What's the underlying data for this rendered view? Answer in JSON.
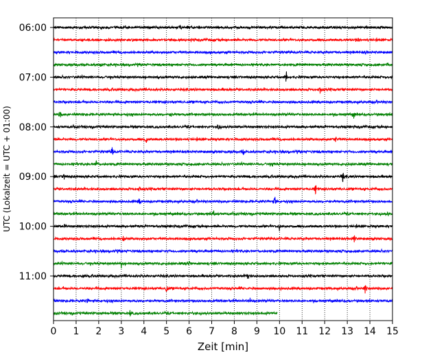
{
  "chart_data": {
    "type": "line",
    "xlabel": "Zeit  [min]",
    "ylabel": "UTC (Lokalzeit = UTC + 01:00)",
    "xlim": [
      0,
      15
    ],
    "x_ticks": [
      "0",
      "1",
      "2",
      "3",
      "4",
      "5",
      "6",
      "7",
      "8",
      "9",
      "10",
      "11",
      "12",
      "13",
      "14",
      "15"
    ],
    "y_tick_labels": [
      "06:00",
      "07:00",
      "08:00",
      "09:00",
      "10:00",
      "11:00"
    ],
    "grid": "vertical dotted",
    "trace_interval_min": 15,
    "trace_colors": [
      "#000000",
      "#ff0000",
      "#0000ff",
      "#008000"
    ],
    "traces": [
      {
        "start": "06:00",
        "color": "#000000",
        "end_min": 15,
        "events": [
          {
            "t": 5.6,
            "amp": 0.3
          }
        ]
      },
      {
        "start": "06:15",
        "color": "#ff0000",
        "end_min": 15,
        "events": [
          {
            "t": 13.5,
            "amp": 0.3
          }
        ]
      },
      {
        "start": "06:30",
        "color": "#0000ff",
        "end_min": 15,
        "events": [
          {
            "t": 13.8,
            "amp": 0.3
          }
        ]
      },
      {
        "start": "06:45",
        "color": "#008000",
        "end_min": 15,
        "events": [
          {
            "t": 2.1,
            "amp": 0.5
          },
          {
            "t": 14.8,
            "amp": 0.4
          }
        ]
      },
      {
        "start": "07:00",
        "color": "#000000",
        "end_min": 15,
        "events": [
          {
            "t": 10.3,
            "amp": 1.0
          }
        ]
      },
      {
        "start": "07:15",
        "color": "#ff0000",
        "end_min": 15,
        "events": [
          {
            "t": 11.8,
            "amp": 0.6
          }
        ]
      },
      {
        "start": "07:30",
        "color": "#0000ff",
        "end_min": 15,
        "events": []
      },
      {
        "start": "07:45",
        "color": "#008000",
        "end_min": 15,
        "events": [
          {
            "t": 0.3,
            "amp": 0.8
          },
          {
            "t": 5.2,
            "amp": 0.4
          },
          {
            "t": 13.3,
            "amp": 0.8
          }
        ]
      },
      {
        "start": "08:00",
        "color": "#000000",
        "end_min": 15,
        "events": [
          {
            "t": 7.3,
            "amp": 0.6
          }
        ]
      },
      {
        "start": "08:15",
        "color": "#ff0000",
        "end_min": 15,
        "events": [
          {
            "t": 4.1,
            "amp": 0.7
          },
          {
            "t": 12.5,
            "amp": 0.5
          }
        ]
      },
      {
        "start": "08:30",
        "color": "#0000ff",
        "end_min": 15,
        "events": [
          {
            "t": 2.6,
            "amp": 1.0
          },
          {
            "t": 8.4,
            "amp": 0.5
          }
        ]
      },
      {
        "start": "08:45",
        "color": "#008000",
        "end_min": 15,
        "events": [
          {
            "t": 1.9,
            "amp": 0.7
          },
          {
            "t": 9.7,
            "amp": 0.4
          }
        ]
      },
      {
        "start": "09:00",
        "color": "#000000",
        "end_min": 15,
        "events": [
          {
            "t": 0.45,
            "amp": 0.7
          },
          {
            "t": 12.8,
            "amp": 0.8
          }
        ]
      },
      {
        "start": "09:15",
        "color": "#ff0000",
        "end_min": 15,
        "events": [
          {
            "t": 11.6,
            "amp": 0.9
          },
          {
            "t": 3.8,
            "amp": 0.4
          }
        ]
      },
      {
        "start": "09:30",
        "color": "#0000ff",
        "end_min": 15,
        "events": [
          {
            "t": 3.8,
            "amp": 0.5
          },
          {
            "t": 9.8,
            "amp": 0.9
          }
        ]
      },
      {
        "start": "09:45",
        "color": "#008000",
        "end_min": 15,
        "events": [
          {
            "t": 7.1,
            "amp": 0.9
          },
          {
            "t": 14.8,
            "amp": 0.4
          }
        ]
      },
      {
        "start": "10:00",
        "color": "#000000",
        "end_min": 15,
        "events": [
          {
            "t": 10.0,
            "amp": 0.7
          },
          {
            "t": 0.5,
            "amp": 0.3
          }
        ]
      },
      {
        "start": "10:15",
        "color": "#ff0000",
        "end_min": 15,
        "events": [
          {
            "t": 3.1,
            "amp": 0.5
          },
          {
            "t": 13.3,
            "amp": 0.8
          }
        ]
      },
      {
        "start": "10:30",
        "color": "#0000ff",
        "end_min": 15,
        "events": []
      },
      {
        "start": "10:45",
        "color": "#008000",
        "end_min": 15,
        "events": [
          {
            "t": 3.0,
            "amp": 0.6
          },
          {
            "t": 6.0,
            "amp": 0.3
          }
        ]
      },
      {
        "start": "11:00",
        "color": "#000000",
        "end_min": 15,
        "events": [
          {
            "t": 8.6,
            "amp": 0.8
          },
          {
            "t": 1.3,
            "amp": 0.3
          }
        ]
      },
      {
        "start": "11:15",
        "color": "#ff0000",
        "end_min": 15,
        "events": [
          {
            "t": 5.0,
            "amp": 0.6
          },
          {
            "t": 13.8,
            "amp": 0.8
          }
        ]
      },
      {
        "start": "11:30",
        "color": "#0000ff",
        "end_min": 15,
        "events": [
          {
            "t": 8.7,
            "amp": 0.5
          },
          {
            "t": 1.5,
            "amp": 0.3
          }
        ]
      },
      {
        "start": "11:45",
        "color": "#008000",
        "end_min": 9.9,
        "events": [
          {
            "t": 3.4,
            "amp": 0.6
          },
          {
            "t": 6.2,
            "amp": 0.3
          }
        ]
      }
    ]
  }
}
